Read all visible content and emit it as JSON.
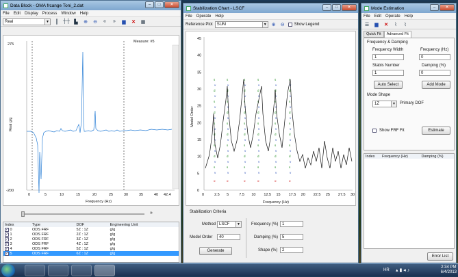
{
  "data_block": {
    "title": "Data Block - OMA frcange Toni_2.dat",
    "menu": [
      "File",
      "Edit",
      "Display",
      "Process",
      "Window",
      "Help"
    ],
    "view_select": "Real",
    "measure_label": "Measure: #5",
    "plot": {
      "ylabel": "Real g/g",
      "xlabel": "Frequency (Hz)",
      "y_ticks": [
        "275",
        "-200"
      ],
      "x_ticks": [
        "0",
        "5",
        "10",
        "15",
        "20",
        "25",
        "30",
        "35",
        "40",
        "42.4"
      ]
    },
    "table": {
      "headers": [
        "Index",
        "Type",
        "DOF",
        "Engineering Unit"
      ],
      "rows": [
        [
          "0",
          "ODS FRF",
          "5Z : 1Z",
          "g/g"
        ],
        [
          "1",
          "ODS FRF",
          "2Z : 1Z",
          "g/g"
        ],
        [
          "2",
          "ODS FRF",
          "3Z : 1Z",
          "g/g"
        ],
        [
          "3",
          "ODS FRF",
          "4Z : 1Z",
          "g/g"
        ],
        [
          "4",
          "ODS FRF",
          "5Z : 1Z",
          "g/g"
        ],
        [
          "5",
          "ODS FRF",
          "6Z : 1Z",
          "g/g"
        ]
      ]
    }
  },
  "stabilization": {
    "title": "Stabilization Chart - LSCF",
    "menu": [
      "File",
      "Operate",
      "Help"
    ],
    "reference_label": "Reference Plot",
    "reference_value": "SUM",
    "show_legend_label": "Show Legend",
    "plot": {
      "ylabel": "Model Order",
      "xlabel": "Frequency (Hz)",
      "y_ticks": [
        "0",
        "5",
        "10",
        "15",
        "20",
        "25",
        "30",
        "35",
        "40",
        "45"
      ],
      "x_ticks": [
        "0",
        "2.5",
        "5",
        "7.5",
        "10",
        "12.5",
        "15",
        "17.5",
        "20",
        "22.5",
        "25",
        "27.5",
        "30"
      ]
    },
    "criteria_title": "Stabilization Criteria",
    "method_label": "Method",
    "method_value": "LSCF",
    "model_order_label": "Model Order",
    "model_order_value": "40",
    "frequency_label": "Frequency (%)",
    "frequency_value": "1",
    "damping_label": "Damping (%)",
    "damping_value": "5",
    "shape_label": "Shape (%)",
    "shape_value": "2",
    "generate_label": "Generate"
  },
  "mode_estimation": {
    "title": "Mode Estimation",
    "menu": [
      "File",
      "Edit",
      "Operate",
      "Help"
    ],
    "tabs": [
      "Quick Fit",
      "Advanced Fit"
    ],
    "freq_damping_title": "Frequency & Damping",
    "freq_width_label": "Frequency Width",
    "freq_width_value": "1",
    "frequency_label": "Frequency (Hz)",
    "frequency_value": "0",
    "stabis_label": "Stabis Number",
    "stabis_value": "1",
    "damping_label": "Damping (%)",
    "damping_value": "0",
    "auto_select_label": "Auto Select",
    "add_mode_label": "Add Mode",
    "mode_shape_title": "Mode Shape",
    "dof_value": "1Z",
    "primary_dof_label": "Primary DOF",
    "show_frf_fit_label": "Show FRF Fit",
    "estimate_label": "Estimate",
    "table_headers": [
      "Index",
      "Frequency (Hz)",
      "Damping (%)"
    ],
    "error_list_label": "Error List"
  },
  "taskbar": {
    "tray_left": "HR",
    "time": "2:34 PM",
    "date": "6/4/2013"
  },
  "colors": {
    "stable": "#1a8a1a",
    "vector": "#2a4fb8",
    "unstable": "#d01010"
  }
}
